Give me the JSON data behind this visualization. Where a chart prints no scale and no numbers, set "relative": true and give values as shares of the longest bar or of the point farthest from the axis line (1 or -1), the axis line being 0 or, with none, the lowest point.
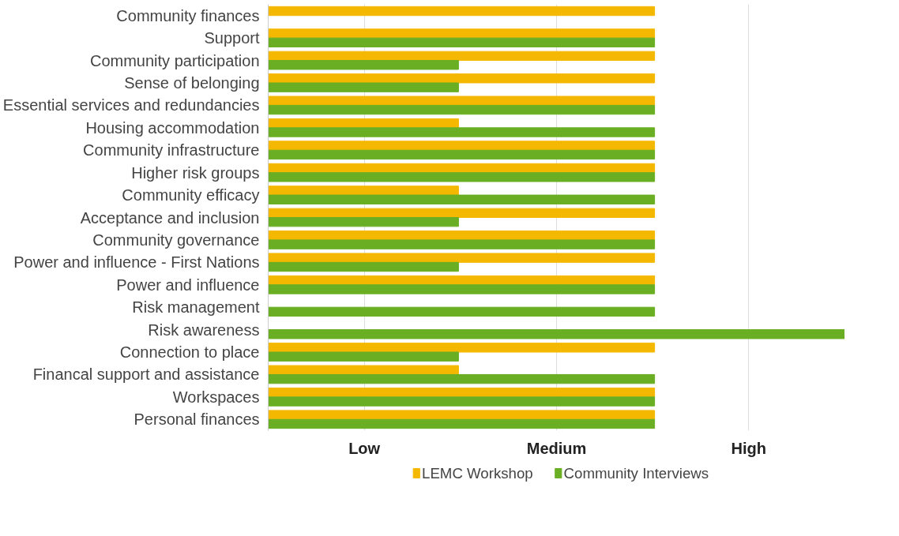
{
  "chart_data": {
    "type": "bar",
    "orientation": "horizontal",
    "relative": true,
    "categories": [
      "Community finances",
      "Support",
      "Community participation",
      "Sense of belonging",
      "Essential services and redundancies",
      "Housing accommodation",
      "Community infrastructure",
      "Higher risk groups",
      "Community efficacy",
      "Acceptance and inclusion",
      "Community governance",
      "Power and influence - First Nations",
      "Power and influence",
      "Risk management",
      "Risk awareness",
      "Connection to place",
      "Financal support and assistance",
      "Workspaces",
      "Personal finances"
    ],
    "series": [
      {
        "name": "LEMC Workshop",
        "color": "#f5b800",
        "values": [
          0.67,
          0.67,
          0.67,
          0.67,
          0.67,
          0.33,
          0.67,
          0.67,
          0.33,
          0.67,
          0.67,
          0.67,
          0.67,
          null,
          null,
          0.67,
          0.33,
          0.67,
          0.67
        ]
      },
      {
        "name": "Community Interviews",
        "color": "#6aaf23",
        "values": [
          null,
          0.67,
          0.33,
          0.33,
          0.67,
          0.67,
          0.67,
          0.67,
          0.67,
          0.33,
          0.67,
          0.33,
          0.67,
          0.67,
          1,
          0.33,
          0.67,
          0.67,
          0.67
        ]
      }
    ],
    "annotations": [
      "Low",
      "Medium",
      "High"
    ],
    "grid": "x",
    "legend": "bottom"
  }
}
